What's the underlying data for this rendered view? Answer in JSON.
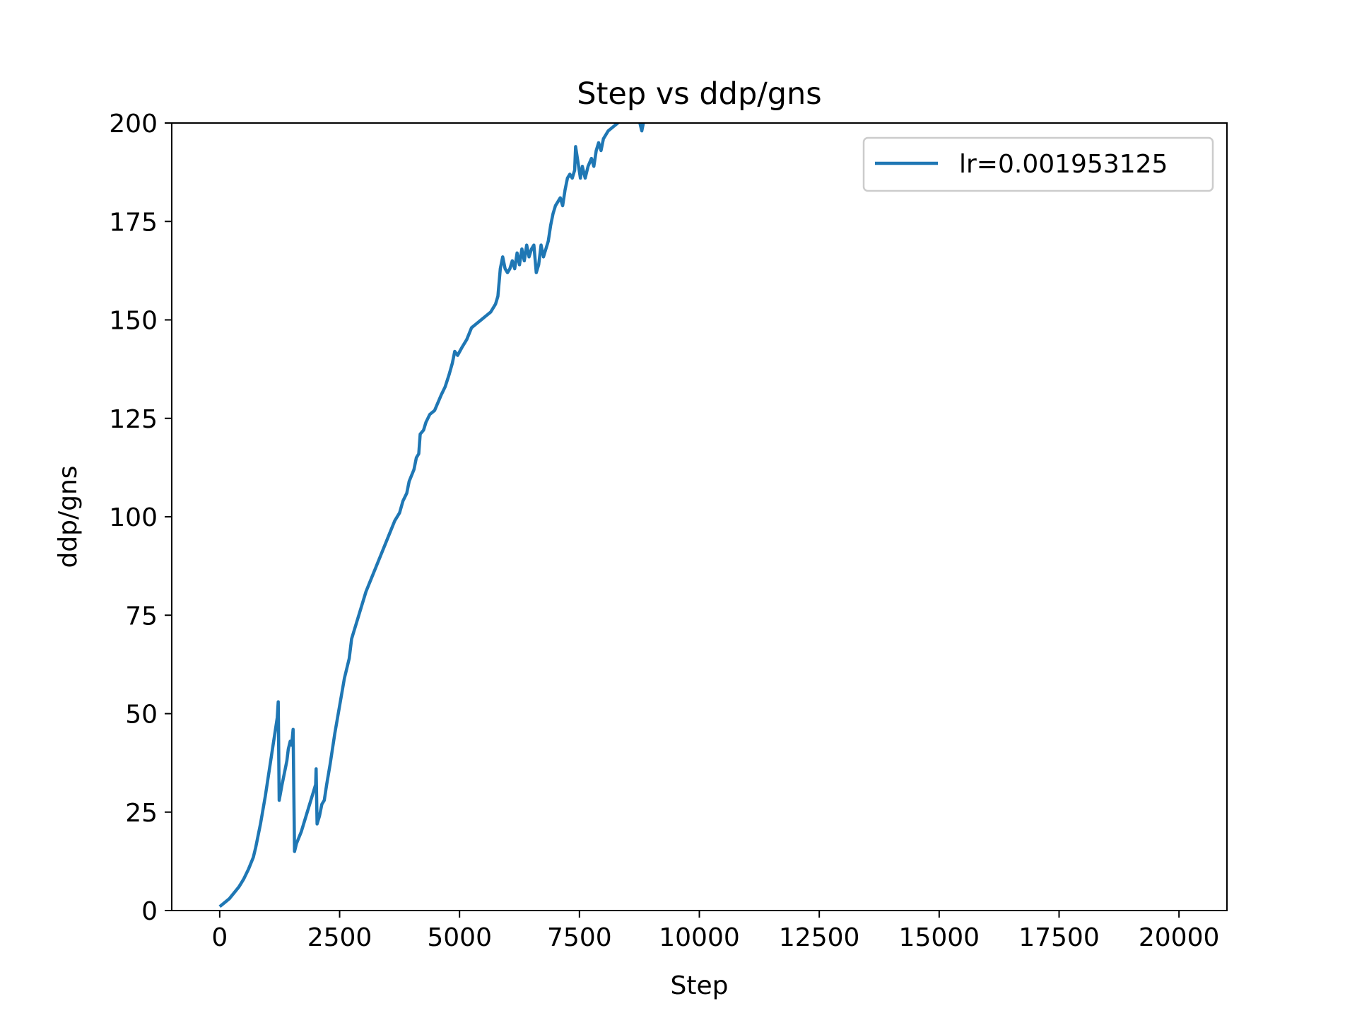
{
  "chart_data": {
    "type": "line",
    "title": "Step vs ddp/gns",
    "xlabel": "Step",
    "ylabel": "ddp/gns",
    "xlim": [
      -1000,
      21000
    ],
    "ylim": [
      0,
      200
    ],
    "xticks": [
      0,
      2500,
      5000,
      7500,
      10000,
      12500,
      15000,
      17500,
      20000
    ],
    "xtick_labels": [
      "0",
      "2500",
      "5000",
      "7500",
      "10000",
      "12500",
      "15000",
      "17500",
      "20000"
    ],
    "yticks": [
      0,
      25,
      50,
      75,
      100,
      125,
      150,
      175,
      200
    ],
    "ytick_labels": [
      "0",
      "25",
      "50",
      "75",
      "100",
      "125",
      "150",
      "175",
      "200"
    ],
    "grid": false,
    "legend_position": "top-right",
    "series": [
      {
        "name": "lr=0.001953125",
        "color": "#1f77b4",
        "points": [
          [
            0,
            1
          ],
          [
            100,
            2
          ],
          [
            200,
            3
          ],
          [
            300,
            4.5
          ],
          [
            400,
            6
          ],
          [
            500,
            8
          ],
          [
            600,
            10.5
          ],
          [
            700,
            13.5
          ],
          [
            750,
            16
          ],
          [
            800,
            19
          ],
          [
            850,
            22
          ],
          [
            900,
            25.5
          ],
          [
            950,
            29
          ],
          [
            1000,
            33
          ],
          [
            1050,
            37
          ],
          [
            1100,
            41
          ],
          [
            1150,
            45
          ],
          [
            1200,
            49
          ],
          [
            1220,
            53
          ],
          [
            1240,
            28
          ],
          [
            1300,
            32
          ],
          [
            1350,
            35
          ],
          [
            1400,
            38
          ],
          [
            1430,
            41
          ],
          [
            1470,
            43
          ],
          [
            1500,
            42
          ],
          [
            1530,
            46
          ],
          [
            1560,
            15
          ],
          [
            1600,
            17
          ],
          [
            1650,
            18.5
          ],
          [
            1700,
            20
          ],
          [
            1750,
            22
          ],
          [
            1800,
            24
          ],
          [
            1850,
            26
          ],
          [
            1900,
            28
          ],
          [
            1950,
            30
          ],
          [
            2000,
            32
          ],
          [
            2010,
            36
          ],
          [
            2030,
            22
          ],
          [
            2080,
            24
          ],
          [
            2130,
            27
          ],
          [
            2180,
            28
          ],
          [
            2230,
            32
          ],
          [
            2300,
            37
          ],
          [
            2400,
            45
          ],
          [
            2500,
            52
          ],
          [
            2600,
            59
          ],
          [
            2700,
            64
          ],
          [
            2750,
            69
          ],
          [
            2850,
            73
          ],
          [
            2950,
            77
          ],
          [
            3050,
            81
          ],
          [
            3150,
            84
          ],
          [
            3250,
            87
          ],
          [
            3350,
            90
          ],
          [
            3450,
            93
          ],
          [
            3550,
            96
          ],
          [
            3650,
            99
          ],
          [
            3750,
            101
          ],
          [
            3820,
            104
          ],
          [
            3900,
            106
          ],
          [
            3950,
            109
          ],
          [
            4050,
            112
          ],
          [
            4100,
            115
          ],
          [
            4150,
            116
          ],
          [
            4180,
            121
          ],
          [
            4250,
            122
          ],
          [
            4300,
            124
          ],
          [
            4380,
            126
          ],
          [
            4480,
            127
          ],
          [
            4550,
            129
          ],
          [
            4620,
            131
          ],
          [
            4700,
            133
          ],
          [
            4780,
            136
          ],
          [
            4850,
            139
          ],
          [
            4900,
            142
          ],
          [
            4960,
            141
          ],
          [
            5050,
            143
          ],
          [
            5150,
            145
          ],
          [
            5250,
            148
          ],
          [
            5350,
            149
          ],
          [
            5450,
            150
          ],
          [
            5550,
            151
          ],
          [
            5650,
            152
          ],
          [
            5750,
            154
          ],
          [
            5800,
            156
          ],
          [
            5850,
            163
          ],
          [
            5900,
            166
          ],
          [
            5950,
            163
          ],
          [
            6000,
            162
          ],
          [
            6050,
            163
          ],
          [
            6100,
            165
          ],
          [
            6150,
            163
          ],
          [
            6200,
            167
          ],
          [
            6250,
            164
          ],
          [
            6300,
            168
          ],
          [
            6350,
            165
          ],
          [
            6400,
            169
          ],
          [
            6450,
            166
          ],
          [
            6500,
            168
          ],
          [
            6550,
            169
          ],
          [
            6600,
            162
          ],
          [
            6650,
            164
          ],
          [
            6700,
            169
          ],
          [
            6750,
            166
          ],
          [
            6800,
            168
          ],
          [
            6850,
            170
          ],
          [
            6900,
            174
          ],
          [
            6950,
            177
          ],
          [
            7000,
            179
          ],
          [
            7050,
            180
          ],
          [
            7100,
            181
          ],
          [
            7150,
            179
          ],
          [
            7200,
            183
          ],
          [
            7250,
            186
          ],
          [
            7300,
            187
          ],
          [
            7350,
            186
          ],
          [
            7400,
            188
          ],
          [
            7420,
            194
          ],
          [
            7470,
            190
          ],
          [
            7520,
            186
          ],
          [
            7560,
            189
          ],
          [
            7620,
            186
          ],
          [
            7680,
            189
          ],
          [
            7750,
            191
          ],
          [
            7800,
            189
          ],
          [
            7850,
            193
          ],
          [
            7900,
            195
          ],
          [
            7950,
            193
          ],
          [
            8000,
            196
          ],
          [
            8100,
            198
          ],
          [
            8200,
            199
          ],
          [
            8300,
            200
          ],
          [
            8400,
            201
          ],
          [
            8500,
            203
          ],
          [
            8600,
            205
          ],
          [
            8700,
            203
          ],
          [
            8800,
            198
          ],
          [
            8900,
            204
          ],
          [
            9000,
            208
          ]
        ]
      }
    ]
  }
}
